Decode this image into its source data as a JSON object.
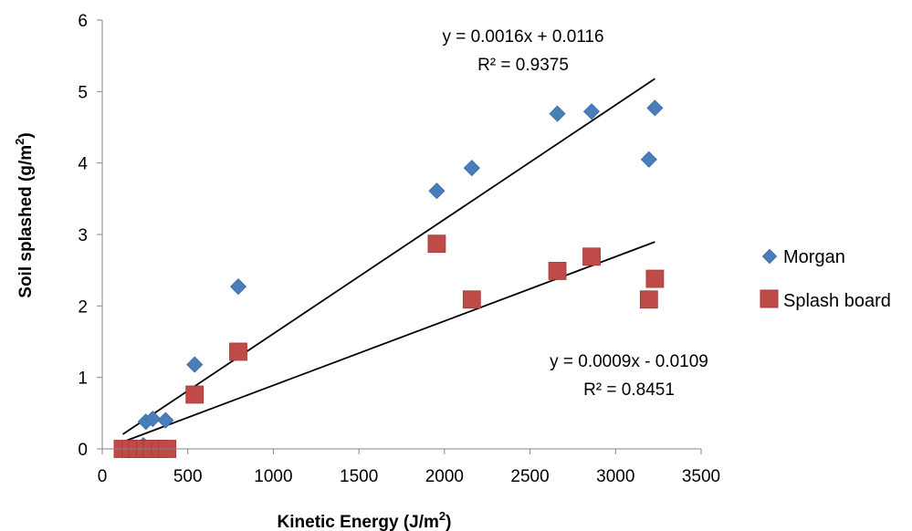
{
  "chart_data": {
    "type": "scatter",
    "title": "",
    "xlabel": "Kinetic Energy (J/m",
    "xlabel_sup": "2",
    "xlabel_end": ")",
    "ylabel": "Soil splashed (g/m",
    "ylabel_sup": "2",
    "ylabel_end": ")",
    "xlim": [
      0,
      3500
    ],
    "ylim": [
      0,
      6
    ],
    "xticks": [
      0,
      500,
      1000,
      1500,
      2000,
      2500,
      3000,
      3500
    ],
    "yticks": [
      0,
      1,
      2,
      3,
      4,
      5,
      6
    ],
    "grid": false,
    "legend_position": "right",
    "series": [
      {
        "name": "Morgan",
        "marker": "diamond",
        "color": "#4a7ebb",
        "points": [
          [
            120,
            0.0
          ],
          [
            150,
            0.0
          ],
          [
            180,
            0.02
          ],
          [
            200,
            0.0
          ],
          [
            240,
            0.05
          ],
          [
            255,
            0.38
          ],
          [
            295,
            0.42
          ],
          [
            370,
            0.4
          ],
          [
            540,
            1.18
          ],
          [
            795,
            2.27
          ],
          [
            1955,
            3.61
          ],
          [
            2160,
            3.93
          ],
          [
            2660,
            4.69
          ],
          [
            2860,
            4.72
          ],
          [
            3195,
            4.05
          ],
          [
            3230,
            4.77
          ]
        ],
        "trendline": {
          "slope": 0.0016,
          "intercept": 0.0116,
          "x_range": [
            120,
            3230
          ]
        },
        "equation": "y = 0.0016x + 0.0116",
        "r2": "R² = 0.9375"
      },
      {
        "name": "Splash board",
        "marker": "square",
        "color": "#be4b48",
        "points": [
          [
            120,
            0.0
          ],
          [
            165,
            0.0
          ],
          [
            205,
            0.0
          ],
          [
            250,
            0.0
          ],
          [
            290,
            0.0
          ],
          [
            340,
            0.0
          ],
          [
            380,
            0.0
          ],
          [
            540,
            0.76
          ],
          [
            795,
            1.36
          ],
          [
            1955,
            2.87
          ],
          [
            2160,
            2.09
          ],
          [
            2660,
            2.49
          ],
          [
            2860,
            2.69
          ],
          [
            3195,
            2.09
          ],
          [
            3230,
            2.38
          ]
        ],
        "trendline": {
          "slope": 0.0009,
          "intercept": -0.0109,
          "x_range": [
            120,
            3230
          ]
        },
        "equation": "y = 0.0009x - 0.0109",
        "r2": "R² = 0.8451"
      }
    ]
  }
}
